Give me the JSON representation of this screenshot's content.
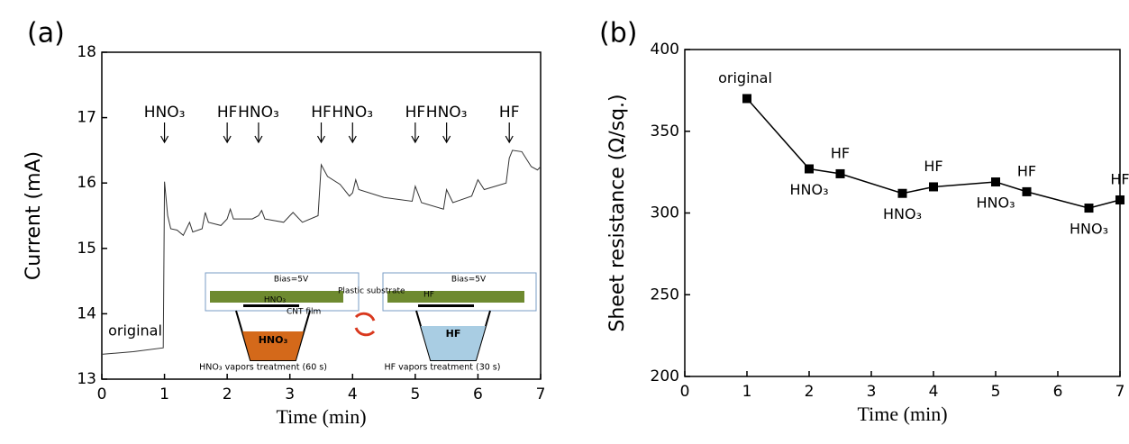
{
  "chart_data": [
    {
      "type": "line",
      "panel_label": "(a)",
      "x_label": "Time (min)",
      "y_label": "Current (mA)",
      "xlim": [
        0,
        7
      ],
      "xticks": [
        0,
        1,
        2,
        3,
        4,
        5,
        6,
        7
      ],
      "ylim": [
        13,
        18
      ],
      "yticks": [
        13,
        14,
        15,
        16,
        17,
        18
      ],
      "color": "#333333",
      "x": [
        0,
        0.5,
        0.98,
        1.0,
        1.05,
        1.1,
        1.2,
        1.3,
        1.4,
        1.45,
        1.6,
        1.65,
        1.7,
        1.9,
        2.0,
        2.05,
        2.1,
        2.4,
        2.5,
        2.55,
        2.6,
        2.9,
        3.0,
        3.05,
        3.2,
        3.45,
        3.5,
        3.6,
        3.8,
        3.95,
        4.0,
        4.05,
        4.1,
        4.5,
        4.95,
        5.0,
        5.1,
        5.45,
        5.5,
        5.6,
        5.9,
        6.0,
        6.1,
        6.45,
        6.5,
        6.55,
        6.7,
        6.85,
        6.95,
        7.0
      ],
      "values": [
        13.38,
        13.42,
        13.48,
        16.02,
        15.5,
        15.3,
        15.28,
        15.2,
        15.4,
        15.25,
        15.3,
        15.55,
        15.4,
        15.35,
        15.45,
        15.6,
        15.45,
        15.45,
        15.5,
        15.58,
        15.45,
        15.4,
        15.5,
        15.55,
        15.4,
        15.5,
        16.28,
        16.1,
        15.98,
        15.8,
        15.85,
        16.05,
        15.9,
        15.78,
        15.72,
        15.95,
        15.7,
        15.6,
        15.9,
        15.7,
        15.8,
        16.05,
        15.9,
        16.0,
        16.38,
        16.5,
        16.48,
        16.25,
        16.2,
        16.25
      ],
      "annotations": [
        {
          "text": "HNO₃",
          "x": 1
        },
        {
          "text": "HF",
          "x": 2
        },
        {
          "text": "HNO₃",
          "x": 2.5
        },
        {
          "text": "HF",
          "x": 3.5
        },
        {
          "text": "HNO₃",
          "x": 4
        },
        {
          "text": "HF",
          "x": 5
        },
        {
          "text": "HNO₃",
          "x": 5.5
        },
        {
          "text": "HF",
          "x": 6.5
        }
      ],
      "start_label": "original",
      "inset_labels": [
        "Bias=5V",
        "Bias=5V",
        "Plastic substrate",
        "CNT film",
        "HNO₃",
        "HF",
        "HNO₃",
        "HF",
        "HNO₃ vapors   treatment (60 s)",
        "HF vapors treatment (30 s)"
      ]
    },
    {
      "type": "line",
      "panel_label": "(b)",
      "x_label": "Time (min)",
      "y_label": "Sheet resistance (Ω/sq.)",
      "xlim": [
        0,
        7
      ],
      "xticks": [
        0,
        1,
        2,
        3,
        4,
        5,
        6,
        7
      ],
      "ylim": [
        200,
        400
      ],
      "yticks": [
        200,
        250,
        300,
        350,
        400
      ],
      "color": "#000000",
      "markers": true,
      "x": [
        1,
        2,
        2.5,
        3.5,
        4,
        5,
        5.5,
        6.5,
        7
      ],
      "values": [
        370,
        327,
        324,
        312,
        316,
        319,
        313,
        303,
        308
      ],
      "point_labels": [
        "original",
        "HNO₃",
        "HF",
        "HNO₃",
        "HF",
        "HNO₃",
        "HF",
        "HNO₃",
        "HF"
      ]
    }
  ]
}
